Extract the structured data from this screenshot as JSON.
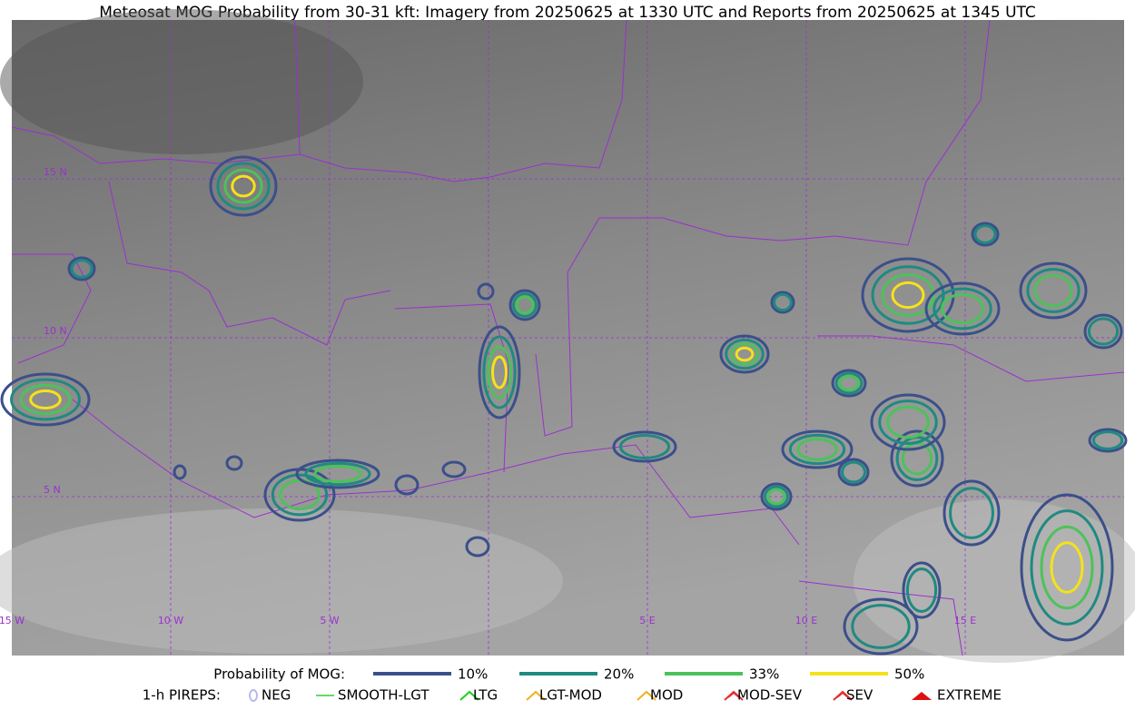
{
  "title": "Meteosat MOG Probability from 30-31 kft: Imagery from 20250625 at 1330 UTC and Reports from 20250625 at 1345 UTC",
  "map": {
    "lat_labels": [
      "15 N",
      "10 N",
      "5 N"
    ],
    "lon_labels": [
      "15 W",
      "10 W",
      "5 W",
      "5 E",
      "10 E",
      "15 E"
    ]
  },
  "legend": {
    "probability": {
      "label": "Probability of MOG:",
      "items": [
        {
          "name": "10%",
          "color": "#3b4f8a"
        },
        {
          "name": "20%",
          "color": "#1f8a80"
        },
        {
          "name": "33%",
          "color": "#4cc25a"
        },
        {
          "name": "50%",
          "color": "#f4e21b"
        }
      ]
    },
    "pireps": {
      "label": "1-h PIREPS:",
      "items": [
        {
          "name": "NEG",
          "color": "#b8b8f0"
        },
        {
          "name": "SMOOTH-LGT",
          "color": "#33cc33"
        },
        {
          "name": "LTG",
          "color": "#22cc22"
        },
        {
          "name": "LGT-MOD",
          "color": "#f0b020"
        },
        {
          "name": "MOD",
          "color": "#f0b020"
        },
        {
          "name": "MOD-SEV",
          "color": "#e03030"
        },
        {
          "name": "SEV",
          "color": "#e03030"
        },
        {
          "name": "EXTREME",
          "color": "#e01010"
        }
      ]
    }
  }
}
